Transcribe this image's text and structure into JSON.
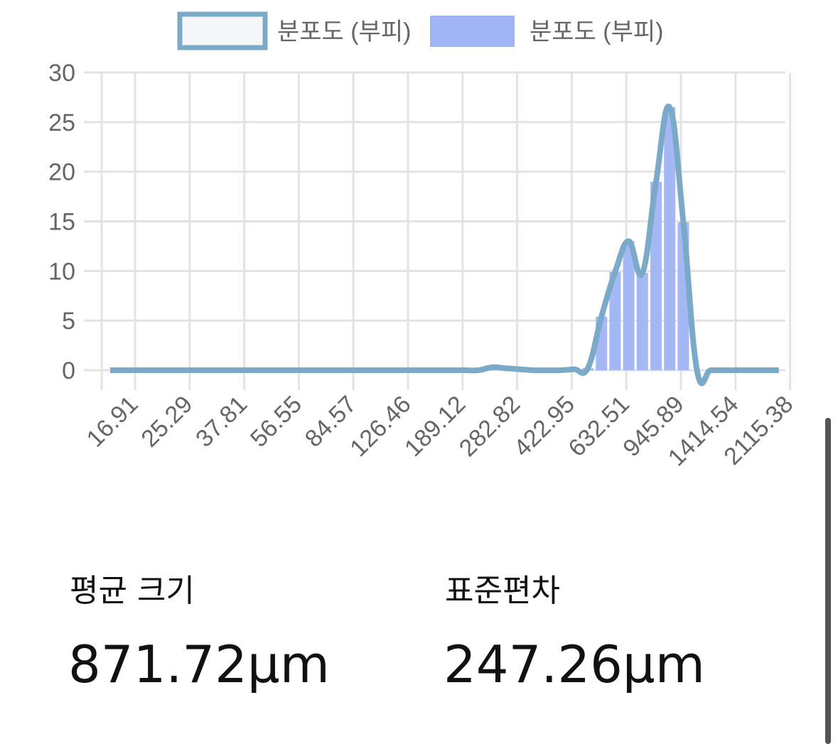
{
  "chart_data": {
    "type": "bar-line",
    "categories": [
      "16.91",
      null,
      null,
      null,
      "25.29",
      null,
      null,
      null,
      "37.81",
      null,
      null,
      null,
      "56.55",
      null,
      null,
      null,
      "84.57",
      null,
      null,
      null,
      "126.46",
      null,
      null,
      null,
      "189.12",
      null,
      null,
      null,
      "282.82",
      null,
      null,
      null,
      "422.95",
      null,
      null,
      null,
      "632.51",
      null,
      null,
      null,
      "945.89",
      null,
      null,
      null,
      "1414.54",
      null,
      null,
      null,
      "2115.38",
      null
    ],
    "series": [
      {
        "name": "분포도 (부피)",
        "type": "line",
        "color": "#7aaac8",
        "values": [
          0,
          0,
          0,
          0,
          0,
          0,
          0,
          0,
          0,
          0,
          0,
          0,
          0,
          0,
          0,
          0,
          0,
          0,
          0,
          0,
          0,
          0,
          0,
          0,
          0,
          0,
          0,
          0,
          0.3,
          0.2,
          0.1,
          0,
          0,
          0,
          0.1,
          0.2,
          5.4,
          9.9,
          13,
          9.8,
          19,
          26.5,
          14.9,
          0,
          0,
          0,
          0,
          0,
          0,
          0
        ]
      },
      {
        "name": "분포도 (부피)",
        "type": "bar",
        "color": "#9fb4f5",
        "values": [
          0,
          0,
          0,
          0,
          0,
          0,
          0,
          0,
          0,
          0,
          0,
          0,
          0,
          0,
          0,
          0,
          0,
          0,
          0,
          0,
          0,
          0,
          0,
          0,
          0,
          0,
          0,
          0,
          0.3,
          0.2,
          0.1,
          0,
          0,
          0,
          0.1,
          0.2,
          5.4,
          9.9,
          13,
          9.8,
          19,
          26.5,
          14.9,
          0,
          0,
          0,
          0,
          0,
          0,
          0
        ]
      }
    ],
    "ylim": [
      0,
      30
    ],
    "yticks": [
      0,
      5,
      10,
      15,
      20,
      25,
      30
    ],
    "grid": true,
    "legend": "top"
  },
  "stats": [
    {
      "label": "평균 크기",
      "value": "871.72μm"
    },
    {
      "label": "표준편차",
      "value": "247.26μm"
    }
  ]
}
